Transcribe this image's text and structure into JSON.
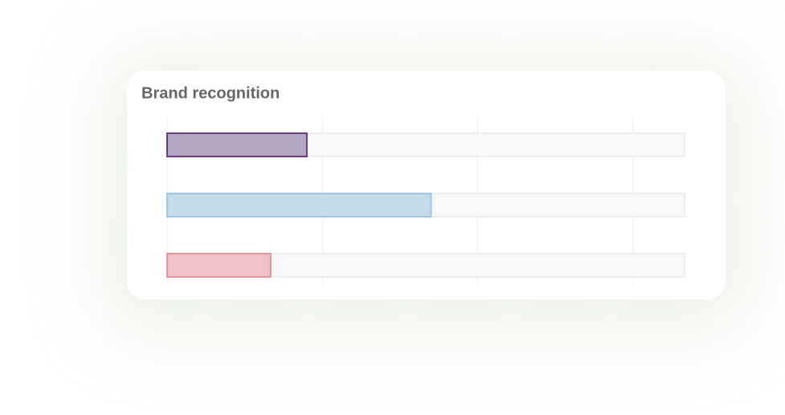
{
  "chart_data": {
    "type": "barh",
    "title": "Brand recognition",
    "categories": [
      null,
      null,
      null
    ],
    "values": [
      27,
      51,
      20
    ],
    "colors": [
      "#b4a5c1",
      "#c5dbea",
      "#f1c2c5"
    ],
    "edge_colors": [
      "#6b3a7d",
      "#9fc6e3",
      "#e0959b"
    ],
    "xlim": [
      0,
      100
    ],
    "xticks": [
      0,
      30,
      60,
      90
    ],
    "grid": true
  }
}
